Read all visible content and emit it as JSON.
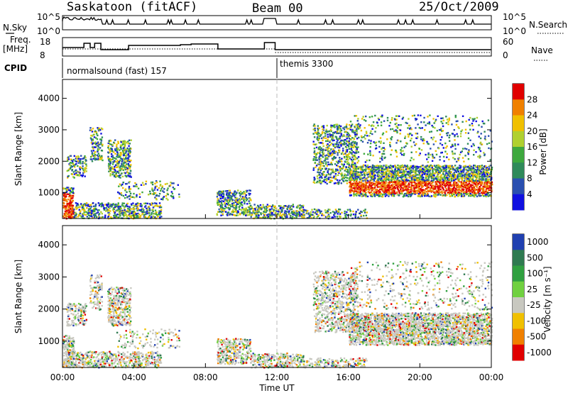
{
  "header": {
    "title": "Saskatoon (fitACF)",
    "beam": "Beam 00",
    "date": "25/Oct/2009"
  },
  "summary_panel": {
    "left_label_top": "N.Sky",
    "left_scale_top": "10^5",
    "left_scale_bottom": "10^0",
    "right_label_top": "N.Search",
    "right_scale_top": "10^5",
    "right_scale_bottom": "10^0",
    "freq_label_1": "Freq.",
    "freq_label_2": "[MHz]",
    "freq_ticks": [
      "18",
      "8"
    ],
    "nave_label": "Nave",
    "nave_ticks": [
      "60",
      "0"
    ],
    "cpid_label": "CPID",
    "cpid_mode_1": "normalsound (fast) 157",
    "cpid_mode_2": "themis 3300",
    "freq_steps": [
      {
        "start": 0.0,
        "end": 1.2,
        "value": 14
      },
      {
        "start": 1.2,
        "end": 1.55,
        "value": 17
      },
      {
        "start": 1.55,
        "end": 1.8,
        "value": 14
      },
      {
        "start": 1.8,
        "end": 2.15,
        "value": 17
      },
      {
        "start": 2.15,
        "end": 3.7,
        "value": 12.5
      },
      {
        "start": 3.7,
        "end": 6.6,
        "value": 15.5
      },
      {
        "start": 6.6,
        "end": 7.2,
        "value": 16
      },
      {
        "start": 7.2,
        "end": 8.7,
        "value": 16.5
      },
      {
        "start": 8.7,
        "end": 11.3,
        "value": 13
      },
      {
        "start": 11.3,
        "end": 11.9,
        "value": 17.5
      },
      {
        "start": 11.9,
        "end": 24.0,
        "value": 12.5
      }
    ]
  },
  "chart_data": [
    {
      "type": "heatmap",
      "name": "power",
      "ylabel": "Slant Range [km]",
      "yticks": [
        "1000",
        "2000",
        "3000",
        "4000"
      ],
      "ylim": [
        180,
        4600
      ],
      "xlim": [
        0,
        24
      ],
      "colorbar_label": "Power [dB]",
      "colorbar_ticks": [
        "4",
        "8",
        "12",
        "16",
        "20",
        "24",
        "28"
      ],
      "colors": [
        "#1010e0",
        "#2a4fb0",
        "#2f8a5a",
        "#3ea83e",
        "#b0d030",
        "#f0c000",
        "#f08000",
        "#e00000"
      ]
    },
    {
      "type": "heatmap",
      "name": "velocity",
      "ylabel": "Slant Range [km]",
      "yticks": [
        "1000",
        "2000",
        "3000",
        "4000"
      ],
      "ylim": [
        180,
        4600
      ],
      "xlim": [
        0,
        24
      ],
      "xlabel": "Time UT",
      "xticks": [
        "00:00",
        "04:00",
        "08:00",
        "12:00",
        "16:00",
        "20:00",
        "00:00"
      ],
      "colorbar_label": "Velocity [m s⁻¹]",
      "colorbar_ticks": [
        "1000",
        "500",
        "100",
        "25",
        "-25",
        "-100",
        "-500",
        "-1000"
      ],
      "colors": [
        "#2040b0",
        "#2f7a50",
        "#30a040",
        "#70d040",
        "#c8c8c0",
        "#f0c000",
        "#f08000",
        "#e00000"
      ]
    }
  ]
}
